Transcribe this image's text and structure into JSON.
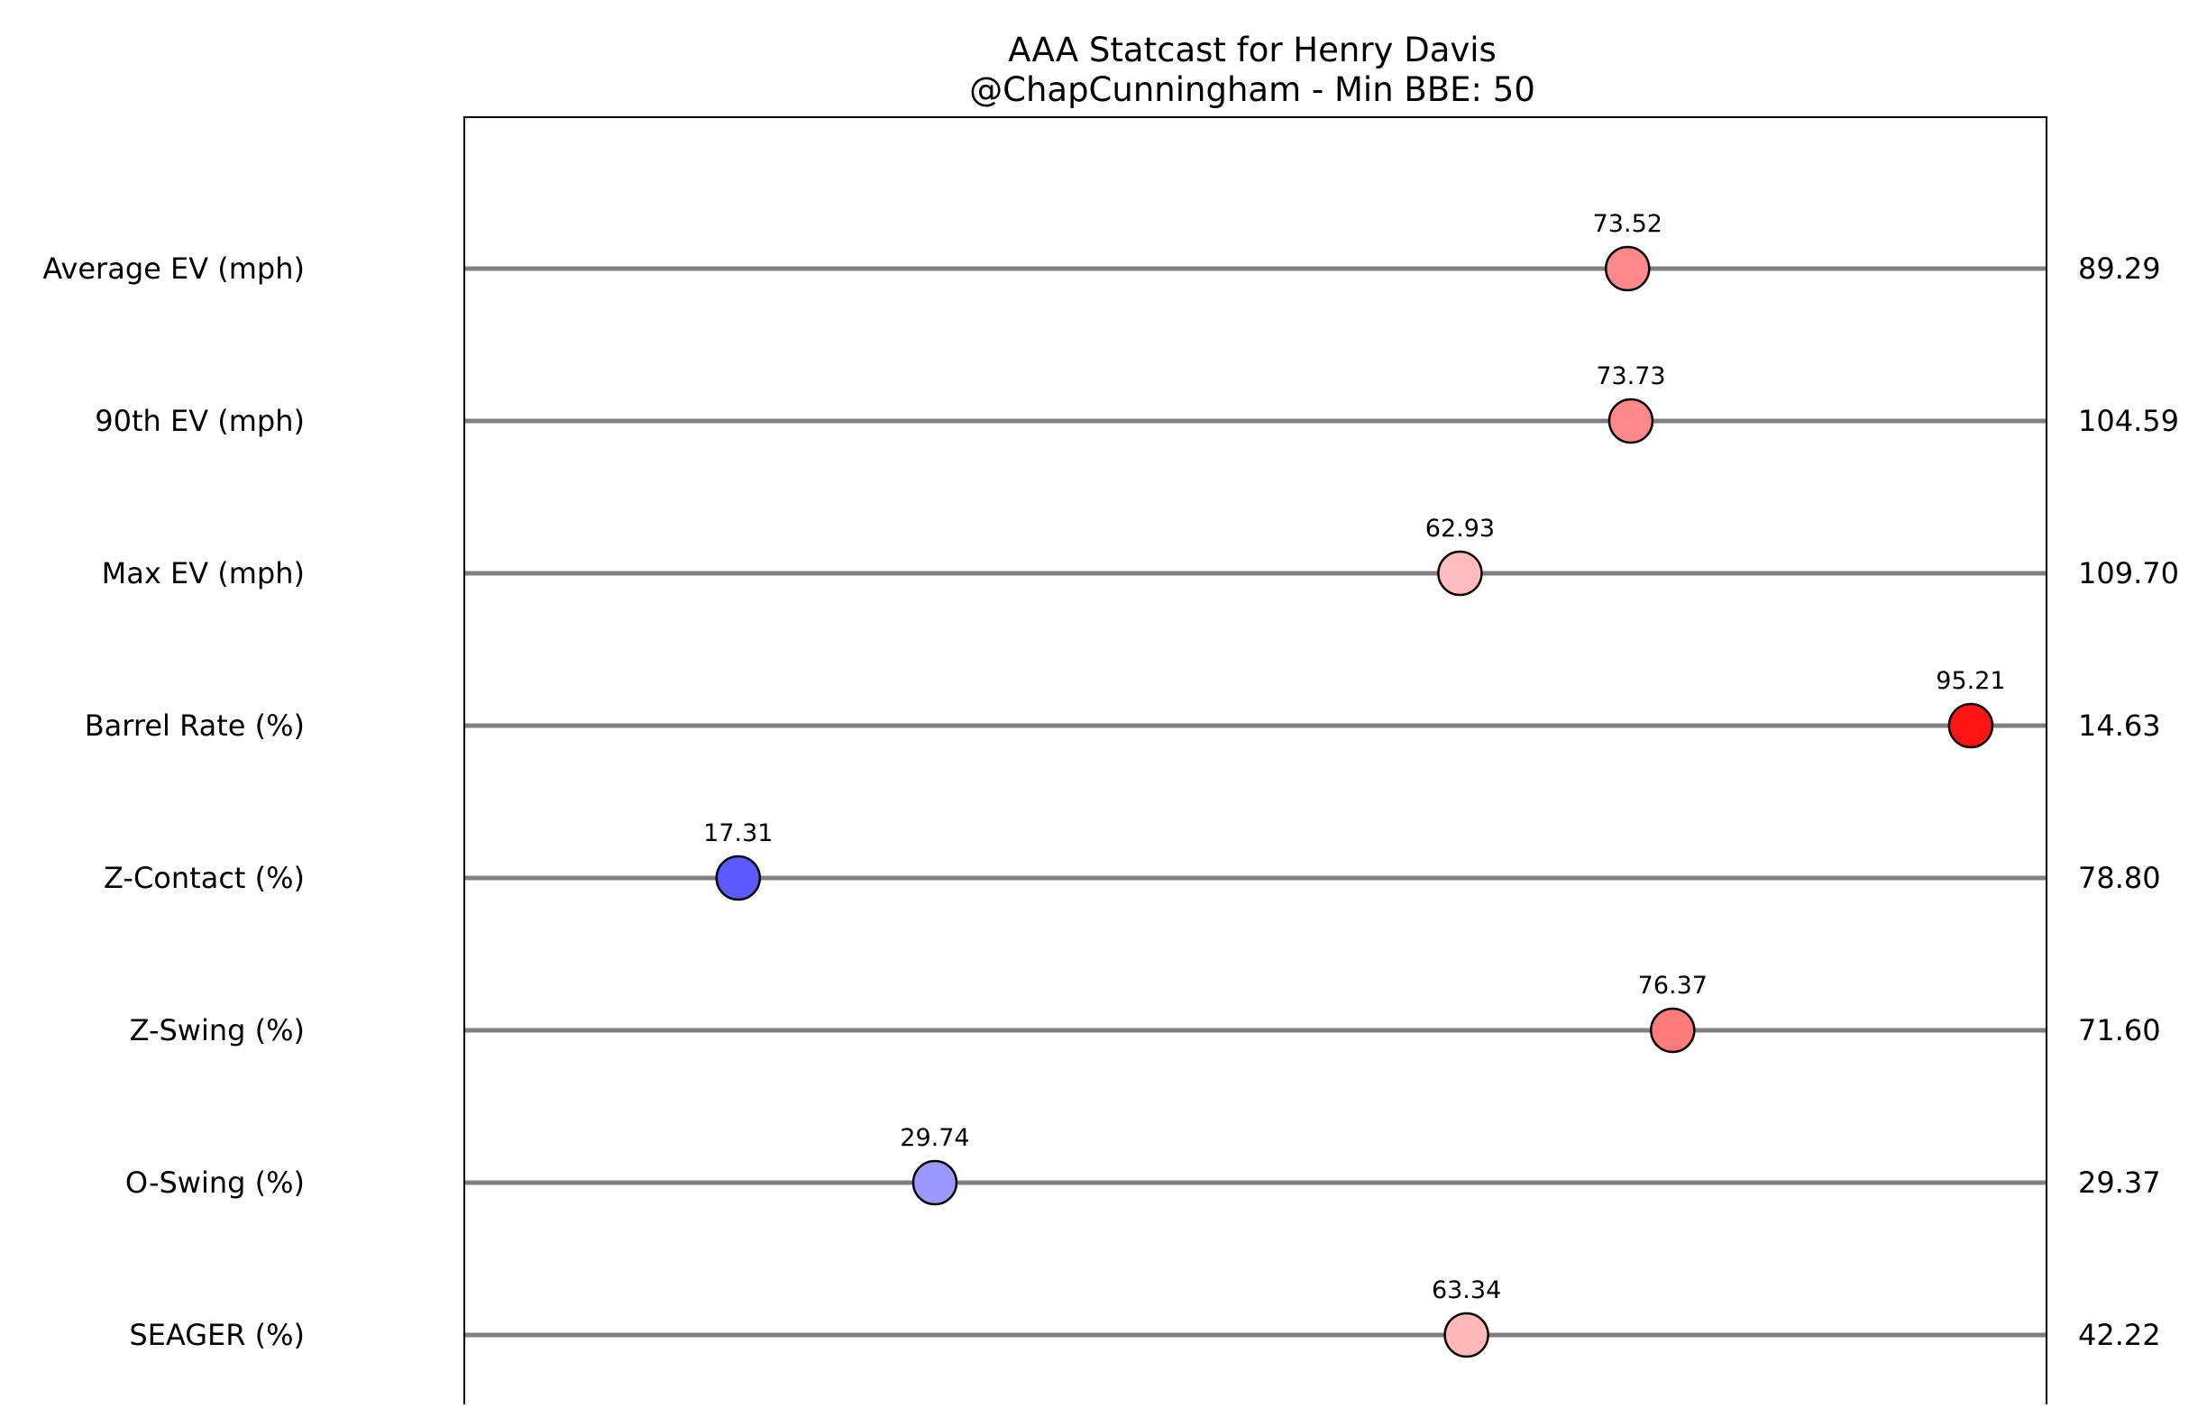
{
  "chart_data": {
    "type": "scatter",
    "title": "AAA Statcast for Henry Davis",
    "subtitle": "@ChapCunningham - Min BBE: 50",
    "xlabel": "",
    "ylabel": "",
    "xlim": [
      0,
      100
    ],
    "grid": false,
    "legend": "none",
    "categories": [
      "Average EV (mph)",
      "90th EV (mph)",
      "Max EV (mph)",
      "Barrel Rate (%)",
      "Z-Contact (%)",
      "Z-Swing (%)",
      "O-Swing (%)",
      "SEAGER (%)"
    ],
    "percentiles": [
      73.52,
      73.73,
      62.93,
      95.21,
      17.31,
      76.37,
      29.74,
      63.34
    ],
    "percentile_labels": [
      "73.52",
      "73.73",
      "62.93",
      "95.21",
      "17.31",
      "76.37",
      "29.74",
      "63.34"
    ],
    "values": [
      "89.29",
      "104.59",
      "109.70",
      "14.63",
      "78.80",
      "71.60",
      "29.37",
      "42.22"
    ],
    "point_colors": [
      "#ff8888",
      "#ff8888",
      "#ffbcbc",
      "#ff1414",
      "#5a5aff",
      "#ff7a7a",
      "#9999ff",
      "#ffb8b8"
    ],
    "line_color": "#808080",
    "marker_edge_color": "#000000"
  }
}
